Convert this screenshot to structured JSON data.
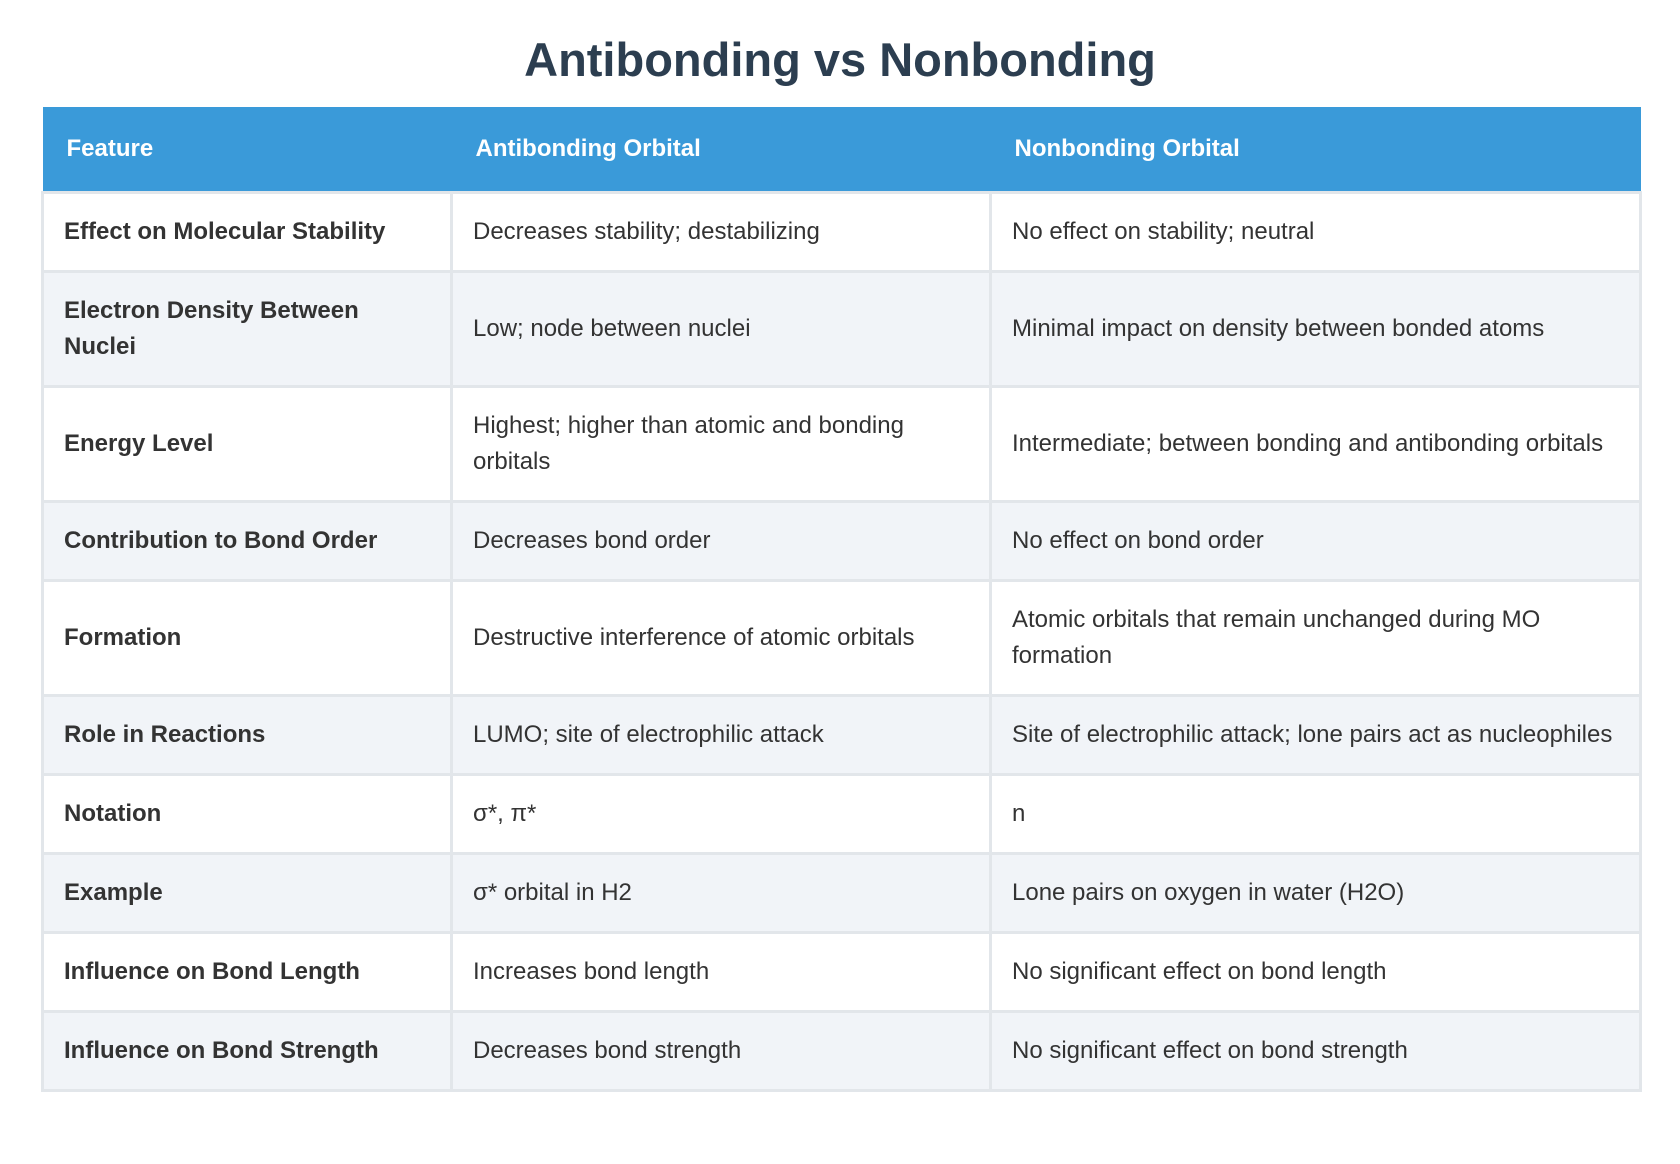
{
  "title": "Antibonding vs Nonbonding",
  "table": {
    "header": [
      "Feature",
      "Antibonding Orbital",
      "Nonbonding Orbital"
    ],
    "rows": [
      [
        "Effect on Molecular Stability",
        "Decreases stability; destabilizing",
        "No effect on stability; neutral"
      ],
      [
        "Electron Density Between Nuclei",
        "Low; node between nuclei",
        "Minimal impact on density between bonded atoms"
      ],
      [
        "Energy Level",
        "Highest; higher than atomic and bonding orbitals",
        "Intermediate; between bonding and antibonding orbitals"
      ],
      [
        "Contribution to Bond Order",
        "Decreases bond order",
        "No effect on bond order"
      ],
      [
        "Formation",
        "Destructive interference of atomic orbitals",
        "Atomic orbitals that remain unchanged during MO formation"
      ],
      [
        "Role in Reactions",
        "LUMO; site of electrophilic attack",
        "Site of electrophilic attack; lone pairs act as nucleophiles"
      ],
      [
        "Notation",
        "σ*, π*",
        "n"
      ],
      [
        "Example",
        "σ* orbital in H2",
        "Lone pairs on oxygen in water (H2O)"
      ],
      [
        "Influence on Bond Length",
        "Increases bond length",
        "No significant effect on bond length"
      ],
      [
        "Influence on Bond Strength",
        "Decreases bond strength",
        "No significant effect on bond strength"
      ]
    ]
  }
}
